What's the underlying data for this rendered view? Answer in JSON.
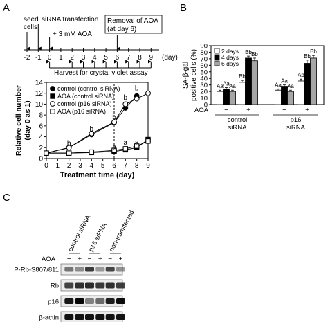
{
  "panel_letters": [
    "A",
    "B",
    "C"
  ],
  "timeline": {
    "ticks": [
      "-2",
      "-1",
      "0",
      "1",
      "2",
      "3",
      "4",
      "5",
      "6",
      "7",
      "8",
      "9"
    ],
    "unit": "(day)",
    "seed_label": [
      "seed",
      "cells"
    ],
    "transfection_label": "siRNA transfection",
    "aoa_label": "+ 3 mM AOA",
    "removal_label": [
      "Removal of AOA",
      "(at day 6)"
    ],
    "harvest_label": "Harvest for crystal violet assay",
    "harvest_days": [
      0,
      2,
      3,
      4,
      5,
      6,
      7,
      8,
      9
    ]
  },
  "chart_data": [
    {
      "type": "line",
      "xlabel": "Treatment time (day)",
      "ylabel": [
        "Relative cell number",
        "(day 0 as 1)"
      ],
      "xlim": [
        0,
        9
      ],
      "ylim": [
        0,
        14
      ],
      "x_ticks": [
        0,
        1,
        2,
        3,
        4,
        5,
        6,
        7,
        8,
        9
      ],
      "y_ticks": [
        0,
        2,
        4,
        6,
        8,
        10,
        12,
        14
      ],
      "vertical_line_at": 6,
      "legend": "top-left",
      "series": [
        {
          "name": "control (control siRNA)",
          "marker": "filled-circle",
          "x": [
            0,
            2,
            4,
            6,
            7,
            8
          ],
          "y": [
            1.0,
            2.0,
            4.4,
            6.6,
            9.3,
            11.5
          ]
        },
        {
          "name": "AOA (control siRNA)",
          "marker": "filled-square",
          "x": [
            0,
            2,
            4,
            6,
            7,
            8,
            9
          ],
          "y": [
            1.0,
            1.0,
            1.1,
            1.3,
            1.6,
            2.0,
            3.5
          ]
        },
        {
          "name": "control (p16 siRNA)",
          "marker": "open-circle",
          "x": [
            0,
            2,
            4,
            6,
            7,
            8,
            9
          ],
          "y": [
            1.0,
            2.0,
            4.6,
            6.7,
            10.0,
            11.0,
            12.0
          ]
        },
        {
          "name": "AOA (p16 siRNA)",
          "marker": "open-square",
          "x": [
            0,
            2,
            4,
            6,
            7,
            8,
            9
          ],
          "y": [
            1.0,
            1.0,
            1.2,
            1.5,
            1.8,
            2.3,
            3.2
          ]
        }
      ],
      "annotations": [
        {
          "text": "b",
          "x": 2,
          "y": 2.8
        },
        {
          "text": "b",
          "x": 4,
          "y": 5.4
        },
        {
          "text": "b",
          "x": 6,
          "y": 7.6
        },
        {
          "text": "b",
          "x": 7,
          "y": 11.2
        },
        {
          "text": "b",
          "x": 8,
          "y": 12.9
        },
        {
          "text": "a",
          "x": 6,
          "y": 2.1
        },
        {
          "text": "a",
          "x": 7,
          "y": 2.9
        },
        {
          "text": "a",
          "x": 8,
          "y": 3.0
        }
      ]
    },
    {
      "type": "bar",
      "ylabel": [
        "SA-β-gal",
        "positive cells (%)"
      ],
      "ylim": [
        0,
        90
      ],
      "y_ticks": [
        0,
        10,
        20,
        30,
        40,
        50,
        60,
        70,
        80,
        90
      ],
      "legend": "top-left",
      "series": [
        {
          "name": "2 days",
          "fill": "#ffffff",
          "values": [
            20,
            34,
            22,
            36
          ],
          "errors": [
            2,
            3,
            2,
            3
          ],
          "labels": [
            "Aa",
            "Bb",
            "Aa",
            "Ab"
          ]
        },
        {
          "name": "4 days",
          "fill": "#000000",
          "values": [
            24,
            71,
            28,
            63
          ],
          "errors": [
            2,
            3,
            2,
            5
          ],
          "labels": [
            "Aa",
            "Bb",
            "Aa",
            "Bb"
          ]
        },
        {
          "name": "6 days",
          "fill": "#a6a6a6",
          "values": [
            20,
            67,
            20,
            71
          ],
          "errors": [
            2,
            4,
            2,
            4
          ],
          "labels": [
            "Aa",
            "Bb",
            "Aa",
            "Bb"
          ]
        }
      ],
      "aoa_row_label": "AOA",
      "aoa_values": [
        "−",
        "+",
        "−",
        "+"
      ],
      "groups": [
        [
          "control",
          "siRNA"
        ],
        [
          "p16",
          "siRNA"
        ]
      ]
    }
  ],
  "blot": {
    "column_labels": [
      "control siRNA",
      "p16 siRNA",
      "non-transfected"
    ],
    "aoa_row_label": "AOA",
    "aoa_values": [
      "−",
      "+",
      "−",
      "+",
      "−",
      "+"
    ],
    "rows": [
      {
        "label": "P-Rb-S807/811",
        "bands": [
          0.5,
          0.4,
          0.75,
          0.35,
          0.7,
          0.38
        ],
        "height": 7
      },
      {
        "label": "Rb",
        "bands": [
          0.72,
          0.8,
          0.82,
          0.76,
          0.8,
          0.74
        ],
        "height": 9
      },
      {
        "label": "p16",
        "bands": [
          0.9,
          0.98,
          0.45,
          0.55,
          0.88,
          0.95
        ],
        "height": 8
      },
      {
        "label": "β-actin",
        "bands": [
          0.92,
          0.92,
          0.92,
          0.92,
          0.92,
          0.92
        ],
        "height": 8
      }
    ]
  }
}
